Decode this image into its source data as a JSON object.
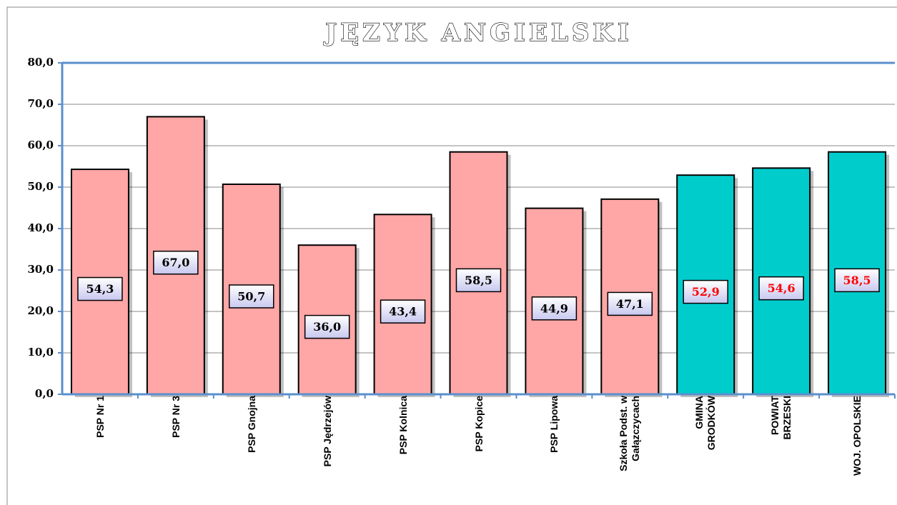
{
  "chart_data": {
    "type": "bar",
    "title": "JĘZYK ANGIELSKI",
    "categories": [
      "PSP Nr 1",
      "PSP Nr 3",
      "PSP Gnojna",
      "PSP Jędrzejów",
      "PSP Kolnica",
      "PSP Kopice",
      "PSP Lipowa",
      "Szkoła Podst. w\nGałązczycach",
      "GMINA\nGRODKÓW",
      "POWIAT\nBRZESKI",
      "WOJ. OPOLSKIE"
    ],
    "values": [
      54.3,
      67.0,
      50.7,
      36.0,
      43.4,
      58.5,
      44.9,
      47.1,
      52.9,
      54.6,
      58.5
    ],
    "value_labels": [
      "54,3",
      "67,0",
      "50,7",
      "36,0",
      "43,4",
      "58,5",
      "44,9",
      "47,1",
      "52,9",
      "54,6",
      "58,5"
    ],
    "colors": [
      "#ffa6a6",
      "#ffa6a6",
      "#ffa6a6",
      "#ffa6a6",
      "#ffa6a6",
      "#ffa6a6",
      "#ffa6a6",
      "#ffa6a6",
      "#00cccc",
      "#00cccc",
      "#00cccc"
    ],
    "label_colors": [
      "#000000",
      "#000000",
      "#000000",
      "#000000",
      "#000000",
      "#000000",
      "#000000",
      "#000000",
      "#ff0000",
      "#ff0000",
      "#ff0000"
    ],
    "ylim": [
      0,
      80
    ],
    "yticks": [
      {
        "value": 0,
        "label": "0,0"
      },
      {
        "value": 10,
        "label": "10,0"
      },
      {
        "value": 20,
        "label": "20,0"
      },
      {
        "value": 30,
        "label": "30,0"
      },
      {
        "value": 40,
        "label": "40,0"
      },
      {
        "value": 50,
        "label": "50,0"
      },
      {
        "value": 60,
        "label": "60,0"
      },
      {
        "value": 70,
        "label": "70,0"
      },
      {
        "value": 80,
        "label": "80,0"
      }
    ],
    "grid": true
  }
}
